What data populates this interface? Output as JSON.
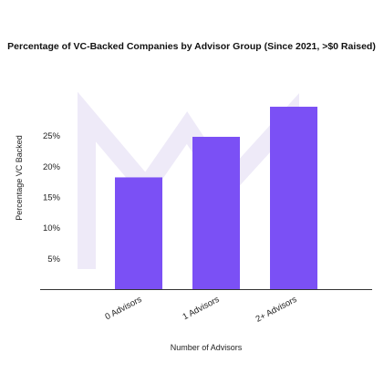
{
  "chart_data": {
    "type": "bar",
    "title": "Percentage of VC-Backed Companies by Advisor Group (Since 2021, >$0 Raised)",
    "xlabel": "Number of Advisors",
    "ylabel": "Percentage VC Backed",
    "categories": [
      "0 Advisors",
      "1 Advisors",
      "2+ Advisors"
    ],
    "values": [
      18.2,
      24.8,
      29.7
    ],
    "ylim": [
      0,
      30
    ],
    "yticks": [
      5,
      10,
      15,
      20,
      25
    ],
    "ytick_labels": [
      "5%",
      "10%",
      "15%",
      "20%",
      "25%"
    ],
    "grid": false,
    "legend": "none",
    "bar_color": "#7b50f5",
    "axis_color": "#333333",
    "watermark_color": "#eeeaf8"
  }
}
